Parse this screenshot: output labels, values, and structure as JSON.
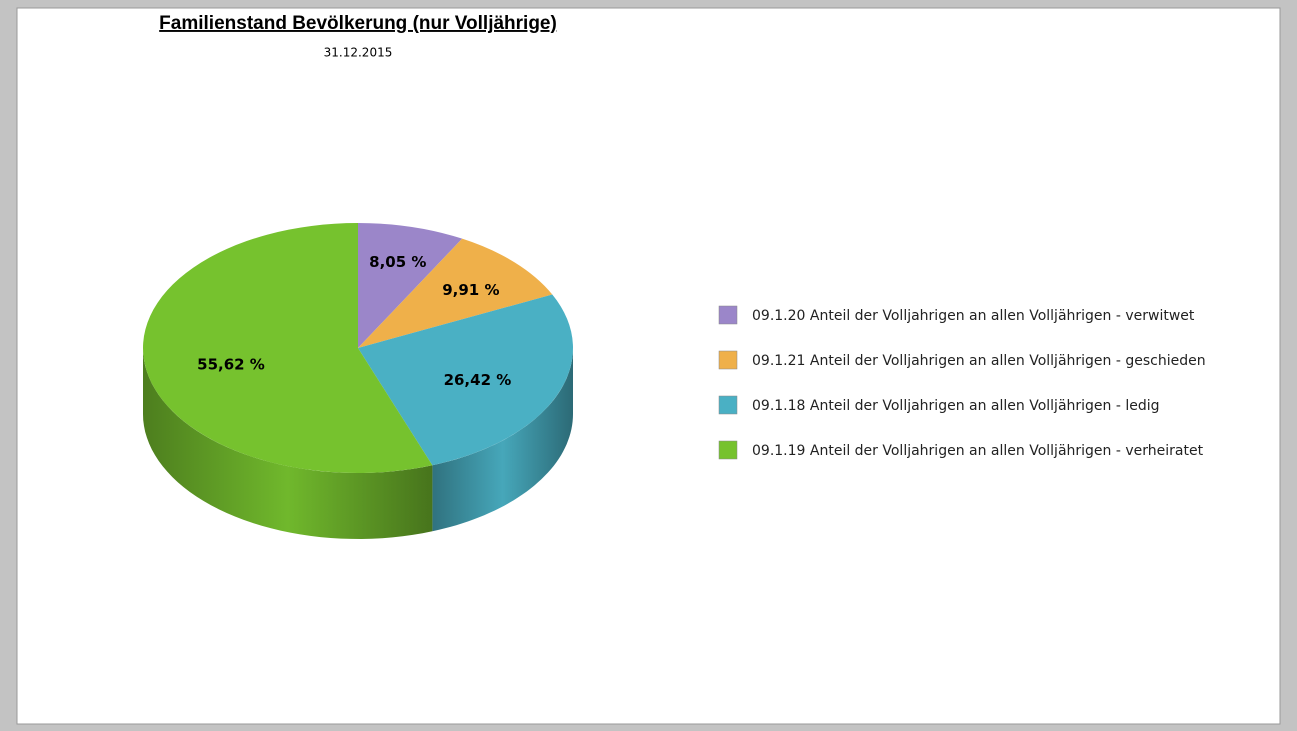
{
  "chart_data": {
    "type": "pie",
    "title": "Familienstand Bevölkerung (nur Volljährige)",
    "subtitle": "31.12.2015",
    "categories": [
      "09.1.20 Anteil der Volljahrigen an allen Volljährigen - verwitwet",
      "09.1.21 Anteil der Volljahrigen an allen Volljährigen - geschieden",
      "09.1.18 Anteil der Volljahrigen an allen Volljährigen - ledig",
      "09.1.19 Anteil der Volljahrigen an allen Volljährigen - verheiratet"
    ],
    "values": [
      8.05,
      9.91,
      26.42,
      55.62
    ],
    "value_labels": [
      "8,05 %",
      "9,91 %",
      "26,42 %",
      "55,62 %"
    ],
    "colors": [
      "#9b86c9",
      "#efb04a",
      "#4ab0c4",
      "#76c22e"
    ],
    "legend": "right"
  }
}
